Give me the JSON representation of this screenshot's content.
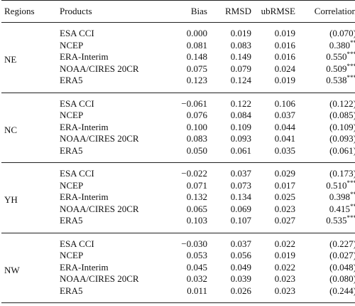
{
  "headers": {
    "regions": "Regions",
    "products": "Products",
    "bias": "Bias",
    "rmsd": "RMSD",
    "ubrmse": "ubRMSE",
    "correlation": "Correlation"
  },
  "groups": [
    {
      "region": "NE",
      "rows": [
        {
          "product": "ESA CCI",
          "bias": "0.000",
          "rmsd": "0.019",
          "ubrmse": "0.019",
          "corr": "(0.070)",
          "stars": ""
        },
        {
          "product": "NCEP",
          "bias": "0.081",
          "rmsd": "0.083",
          "ubrmse": "0.016",
          "corr": "0.380",
          "stars": "**"
        },
        {
          "product": "ERA-Interim",
          "bias": "0.148",
          "rmsd": "0.149",
          "ubrmse": "0.016",
          "corr": "0.550",
          "stars": "***"
        },
        {
          "product": "NOAA/CIRES 20CR",
          "bias": "0.075",
          "rmsd": "0.079",
          "ubrmse": "0.024",
          "corr": "0.509",
          "stars": "***"
        },
        {
          "product": "ERA5",
          "bias": "0.123",
          "rmsd": "0.124",
          "ubrmse": "0.019",
          "corr": "0.538",
          "stars": "***"
        }
      ]
    },
    {
      "region": "NC",
      "rows": [
        {
          "product": "ESA CCI",
          "bias": "−0.061",
          "rmsd": "0.122",
          "ubrmse": "0.106",
          "corr": "(0.122)",
          "stars": ""
        },
        {
          "product": "NCEP",
          "bias": "0.076",
          "rmsd": "0.084",
          "ubrmse": "0.037",
          "corr": "(0.085)",
          "stars": ""
        },
        {
          "product": "ERA-Interim",
          "bias": "0.100",
          "rmsd": "0.109",
          "ubrmse": "0.044",
          "corr": "(0.109)",
          "stars": ""
        },
        {
          "product": "NOAA/CIRES 20CR",
          "bias": "0.083",
          "rmsd": "0.093",
          "ubrmse": "0.041",
          "corr": "(0.093)",
          "stars": ""
        },
        {
          "product": "ERA5",
          "bias": "0.050",
          "rmsd": "0.061",
          "ubrmse": "0.035",
          "corr": "(0.061)",
          "stars": ""
        }
      ]
    },
    {
      "region": "YH",
      "rows": [
        {
          "product": "ESA CCI",
          "bias": "−0.022",
          "rmsd": "0.037",
          "ubrmse": "0.029",
          "corr": "(0.173)",
          "stars": ""
        },
        {
          "product": "NCEP",
          "bias": "0.071",
          "rmsd": "0.073",
          "ubrmse": "0.017",
          "corr": "0.510",
          "stars": "***"
        },
        {
          "product": "ERA-Interim",
          "bias": "0.132",
          "rmsd": "0.134",
          "ubrmse": "0.025",
          "corr": "0.398",
          "stars": "**"
        },
        {
          "product": "NOAA/CIRES 20CR",
          "bias": "0.065",
          "rmsd": "0.069",
          "ubrmse": "0.023",
          "corr": "0.415",
          "stars": "**"
        },
        {
          "product": "ERA5",
          "bias": "0.103",
          "rmsd": "0.107",
          "ubrmse": "0.027",
          "corr": "0.535",
          "stars": "***"
        }
      ]
    },
    {
      "region": "NW",
      "rows": [
        {
          "product": "ESA CCI",
          "bias": "−0.030",
          "rmsd": "0.037",
          "ubrmse": "0.022",
          "corr": "(0.227)",
          "stars": ""
        },
        {
          "product": "NCEP",
          "bias": "0.053",
          "rmsd": "0.056",
          "ubrmse": "0.019",
          "corr": "(0.027)",
          "stars": ""
        },
        {
          "product": "ERA-Interim",
          "bias": "0.045",
          "rmsd": "0.049",
          "ubrmse": "0.022",
          "corr": "(0.048)",
          "stars": ""
        },
        {
          "product": "NOAA/CIRES 20CR",
          "bias": "0.032",
          "rmsd": "0.039",
          "ubrmse": "0.023",
          "corr": "(0.080)",
          "stars": ""
        },
        {
          "product": "ERA5",
          "bias": "0.011",
          "rmsd": "0.026",
          "ubrmse": "0.023",
          "corr": "(0.244)",
          "stars": ""
        }
      ]
    }
  ]
}
